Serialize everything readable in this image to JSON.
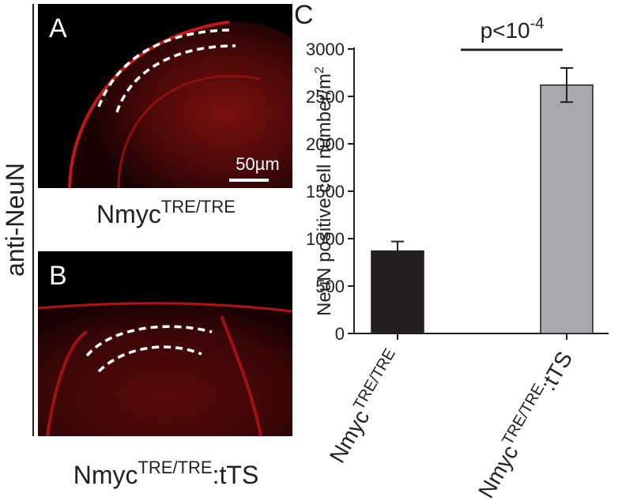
{
  "side_label": "anti-NeuN",
  "panels": [
    {
      "label": "A",
      "scale_bar": "50µm",
      "caption": {
        "base": "Nmyc",
        "sup": "TRE/TRE"
      }
    },
    {
      "label": "B",
      "caption": {
        "base": "Nmyc",
        "sup": "TRE/TRE",
        "suffix": ":tTS"
      }
    }
  ],
  "chart_data": {
    "type": "bar",
    "panel_label": "C",
    "ylabel": {
      "text": "NeuN positive cell number/m",
      "sup": "2"
    },
    "annotation": {
      "text": "p<10",
      "sup": "-4"
    },
    "categories": [
      {
        "base": "Nmyc",
        "sup": "TRE/TRE"
      },
      {
        "base": "Nmyc",
        "sup": "TRE/TRE",
        "suffix": ":tTS"
      }
    ],
    "values": [
      870,
      2620
    ],
    "errors": [
      100,
      180
    ],
    "colors": [
      "#231f20",
      "#a7a9ac"
    ],
    "ylim": [
      0,
      3000
    ],
    "yticks": [
      0,
      500,
      1000,
      1500,
      2000,
      2500,
      3000
    ]
  }
}
